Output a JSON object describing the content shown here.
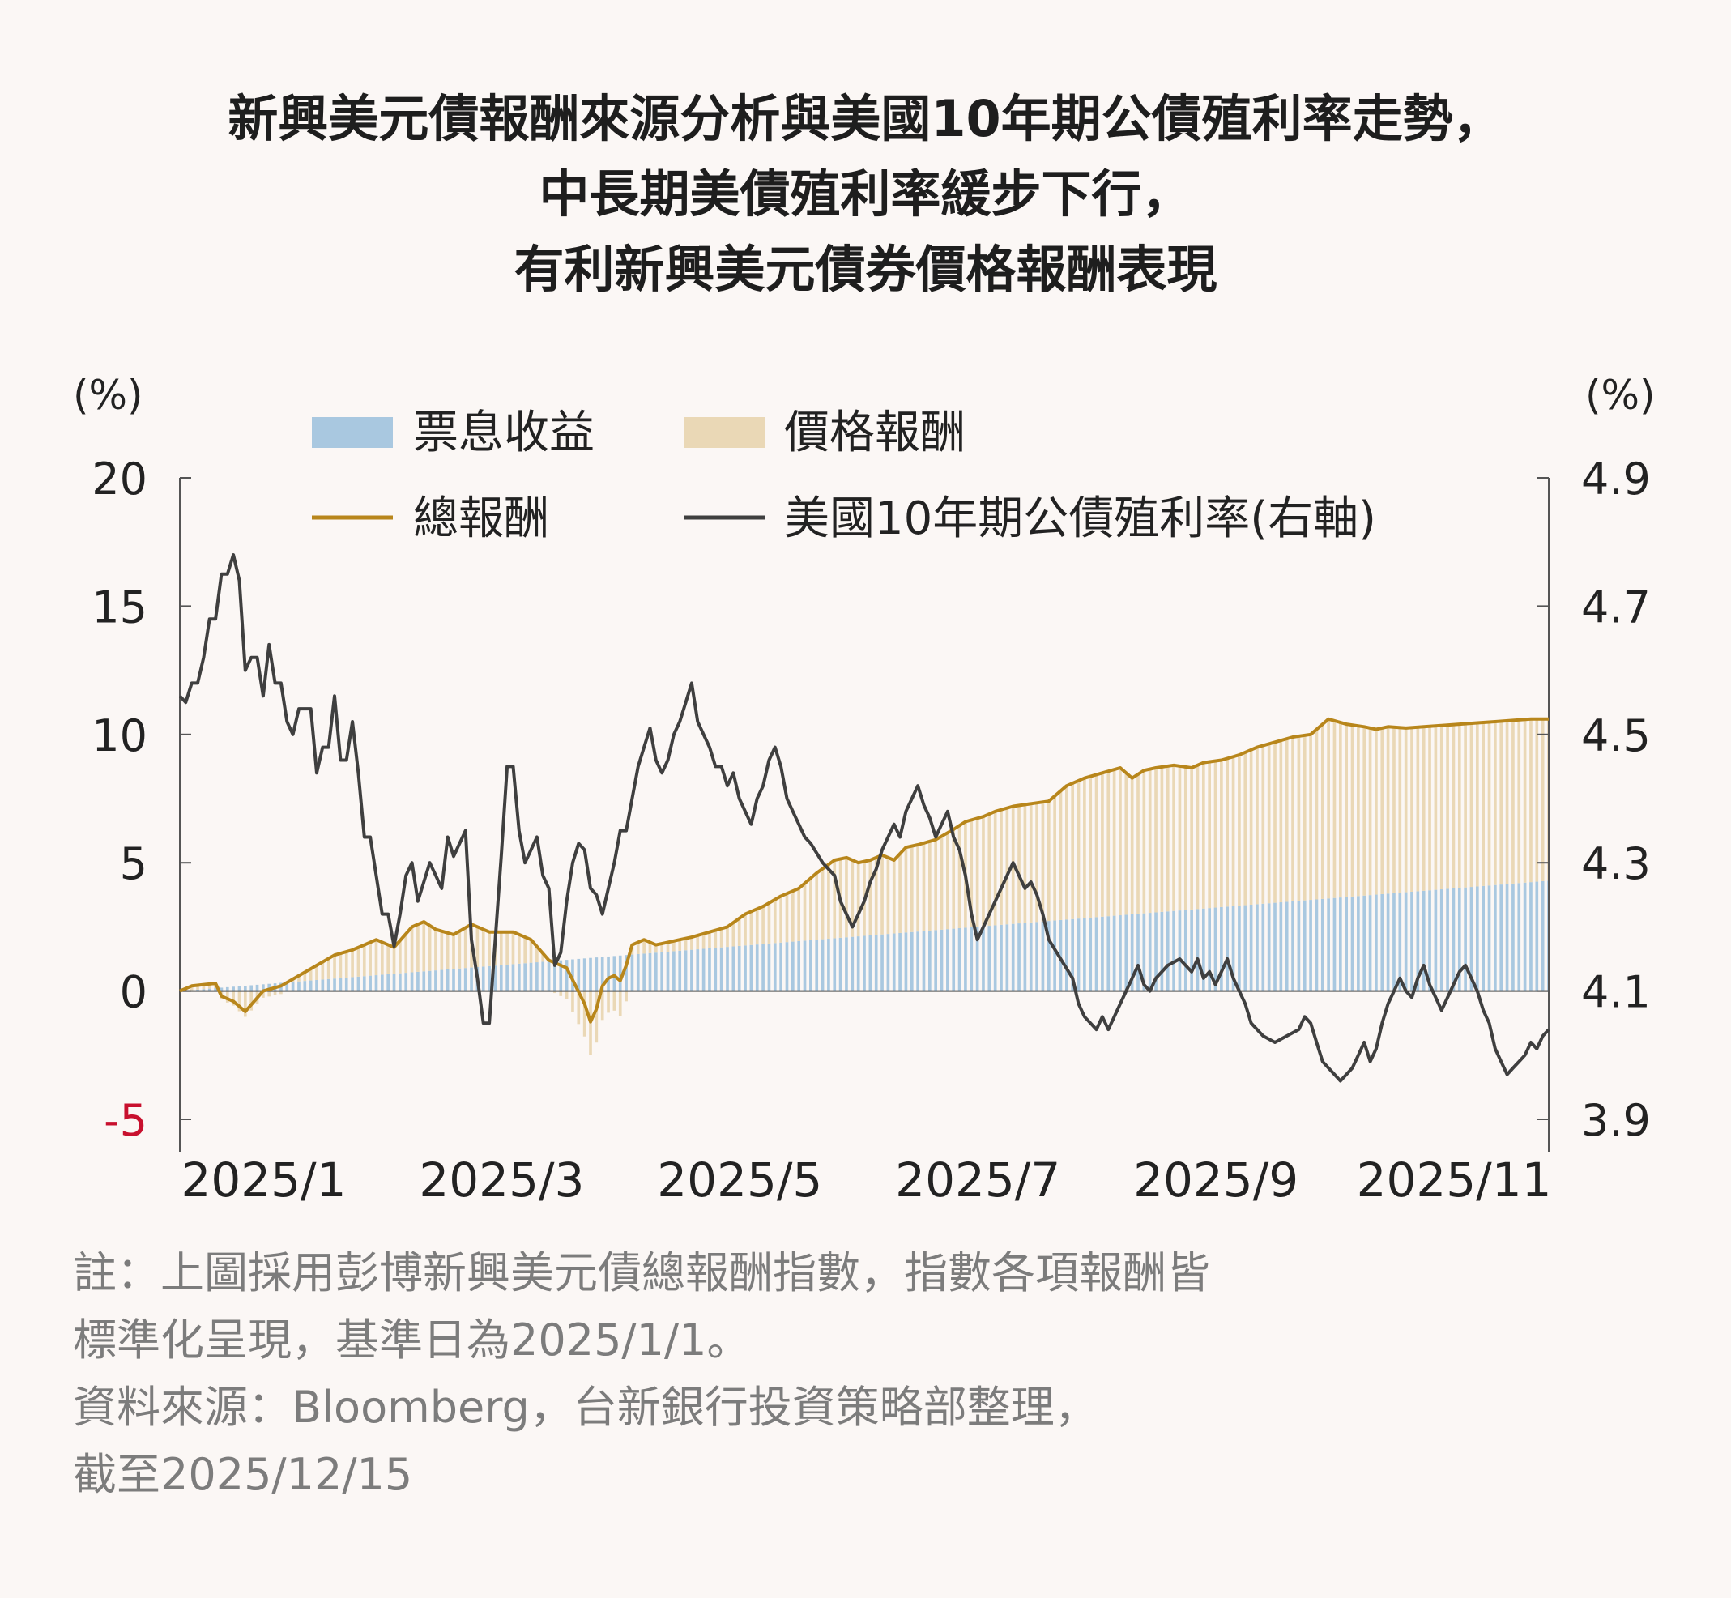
{
  "title": {
    "lines": [
      "新興美元債報酬來源分析與美國10年期公債殖利率走勢，",
      "中長期美債殖利率緩步下行，",
      "有利新興美元債券價格報酬表現"
    ]
  },
  "notes": {
    "lines": [
      "註：上圖採用彭博新興美元債總報酬指數，指數各項報酬皆",
      "標準化呈現，基準日為2025/1/1。",
      "資料來源：Bloomberg，台新銀行投資策略部整理，",
      "截至2025/12/15"
    ]
  },
  "colors": {
    "coupon": "#a9c8e0",
    "price": "#ead8b6",
    "total": "#b8861b",
    "yield": "#3f3f3f",
    "negative_tick": "#c8102e",
    "axis": "#555555"
  },
  "chart_data": {
    "type": "bar+line",
    "left_axis": {
      "unit_label": "(%)",
      "ylim": [
        -5,
        20
      ],
      "ticks": [
        "20",
        "15",
        "10",
        "5",
        "0",
        "-5"
      ]
    },
    "right_axis": {
      "unit_label": "(%)",
      "ylim": [
        3.9,
        4.9
      ],
      "ticks": [
        "4.9",
        "4.7",
        "4.5",
        "4.3",
        "4.1",
        "3.9"
      ]
    },
    "x_axis": {
      "range": [
        0,
        11.5
      ],
      "tick_labels": [
        "2025/1",
        "2025/3",
        "2025/5",
        "2025/7",
        "2025/9",
        "2025/11"
      ],
      "tick_positions": [
        0.5,
        2.5,
        4.5,
        6.5,
        8.5,
        10.5
      ]
    },
    "legend": {
      "coupon": "票息收益",
      "price": "價格報酬",
      "total": "總報酬",
      "yield": "美國10年期公債殖利率(右軸)"
    },
    "coupon_income": {
      "x": [
        0,
        11.5
      ],
      "values": [
        0,
        4.3
      ]
    },
    "total_return": {
      "x": [
        0,
        0.1,
        0.3,
        0.35,
        0.45,
        0.55,
        0.7,
        0.85,
        1,
        1.15,
        1.3,
        1.45,
        1.55,
        1.65,
        1.8,
        1.95,
        2.05,
        2.15,
        2.3,
        2.45,
        2.6,
        2.8,
        2.95,
        3.1,
        3.25,
        3.4,
        3.45,
        3.5,
        3.55,
        3.6,
        3.65,
        3.7,
        3.75,
        3.8,
        3.9,
        4.0,
        4.1,
        4.2,
        4.3,
        4.45,
        4.6,
        4.75,
        4.9,
        5.05,
        5.2,
        5.35,
        5.5,
        5.6,
        5.7,
        5.8,
        5.9,
        6.0,
        6.1,
        6.2,
        6.35,
        6.5,
        6.6,
        6.75,
        6.85,
        7.0,
        7.15,
        7.3,
        7.45,
        7.6,
        7.75,
        7.9,
        8.0,
        8.1,
        8.2,
        8.35,
        8.5,
        8.6,
        8.75,
        8.9,
        9.05,
        9.2,
        9.35,
        9.5,
        9.65,
        9.8,
        9.95,
        10.05,
        10.15,
        10.3,
        10.45,
        10.6,
        10.75,
        10.9,
        11.05,
        11.2,
        11.35,
        11.5
      ],
      "values": [
        0,
        0.2,
        0.3,
        -0.2,
        -0.4,
        -0.8,
        0,
        0.2,
        0.6,
        1.0,
        1.4,
        1.6,
        1.8,
        2.0,
        1.7,
        2.5,
        2.7,
        2.4,
        2.2,
        2.6,
        2.3,
        2.3,
        2.0,
        1.2,
        0.9,
        -0.5,
        -1.2,
        -0.7,
        0.2,
        0.5,
        0.6,
        0.4,
        1.0,
        1.8,
        2.0,
        1.8,
        1.9,
        2.0,
        2.1,
        2.3,
        2.5,
        3.0,
        3.3,
        3.7,
        4.0,
        4.6,
        5.1,
        5.2,
        5.0,
        5.1,
        5.3,
        5.1,
        5.6,
        5.7,
        5.9,
        6.3,
        6.6,
        6.8,
        7.0,
        7.2,
        7.3,
        7.4,
        8.0,
        8.3,
        8.5,
        8.7,
        8.3,
        8.6,
        8.7,
        8.8,
        8.7,
        8.9,
        9.0,
        9.2,
        9.5,
        9.7,
        9.9,
        10.0,
        10.6,
        10.4,
        10.3,
        10.2,
        10.3,
        10.25,
        10.3,
        10.35,
        10.4,
        10.45,
        10.5,
        10.55,
        10.6,
        10.6
      ]
    },
    "us10y_yield": {
      "x": [
        0,
        0.05,
        0.1,
        0.15,
        0.2,
        0.25,
        0.3,
        0.35,
        0.4,
        0.45,
        0.5,
        0.55,
        0.6,
        0.65,
        0.7,
        0.75,
        0.8,
        0.85,
        0.9,
        0.95,
        1.0,
        1.1,
        1.15,
        1.2,
        1.25,
        1.3,
        1.35,
        1.4,
        1.45,
        1.5,
        1.55,
        1.6,
        1.7,
        1.75,
        1.8,
        1.85,
        1.9,
        1.95,
        2.0,
        2.1,
        2.15,
        2.2,
        2.25,
        2.3,
        2.4,
        2.45,
        2.5,
        2.55,
        2.6,
        2.7,
        2.75,
        2.8,
        2.85,
        2.9,
        2.95,
        3.0,
        3.05,
        3.1,
        3.15,
        3.2,
        3.25,
        3.3,
        3.35,
        3.4,
        3.45,
        3.5,
        3.55,
        3.6,
        3.65,
        3.7,
        3.75,
        3.8,
        3.85,
        3.9,
        3.95,
        4.0,
        4.05,
        4.1,
        4.15,
        4.2,
        4.25,
        4.3,
        4.35,
        4.4,
        4.45,
        4.5,
        4.55,
        4.6,
        4.65,
        4.7,
        4.75,
        4.8,
        4.85,
        4.9,
        4.95,
        5.0,
        5.05,
        5.1,
        5.15,
        5.2,
        5.25,
        5.3,
        5.4,
        5.5,
        5.55,
        5.6,
        5.65,
        5.7,
        5.75,
        5.8,
        5.85,
        5.9,
        5.95,
        6.0,
        6.05,
        6.1,
        6.15,
        6.2,
        6.25,
        6.3,
        6.35,
        6.4,
        6.45,
        6.5,
        6.55,
        6.6,
        6.65,
        6.7,
        6.75,
        6.8,
        6.85,
        6.9,
        6.95,
        7.0,
        7.05,
        7.1,
        7.15,
        7.2,
        7.25,
        7.3,
        7.4,
        7.5,
        7.55,
        7.6,
        7.65,
        7.7,
        7.75,
        7.8,
        7.85,
        7.9,
        7.95,
        8.0,
        8.05,
        8.1,
        8.15,
        8.2,
        8.3,
        8.4,
        8.5,
        8.55,
        8.6,
        8.65,
        8.7,
        8.75,
        8.8,
        8.85,
        8.9,
        8.95,
        9.0,
        9.1,
        9.2,
        9.3,
        9.4,
        9.45,
        9.5,
        9.55,
        9.6,
        9.65,
        9.7,
        9.75,
        9.8,
        9.85,
        9.9,
        9.95,
        10.0,
        10.05,
        10.1,
        10.15,
        10.2,
        10.25,
        10.3,
        10.35,
        10.4,
        10.45,
        10.5,
        10.55,
        10.6,
        10.65,
        10.7,
        10.75,
        10.8,
        10.85,
        10.9,
        10.95,
        11.0,
        11.05,
        11.1,
        11.15,
        11.2,
        11.25,
        11.3,
        11.35,
        11.4,
        11.45,
        11.5
      ],
      "values": [
        4.56,
        4.55,
        4.58,
        4.58,
        4.62,
        4.68,
        4.68,
        4.75,
        4.75,
        4.78,
        4.74,
        4.6,
        4.62,
        4.62,
        4.56,
        4.64,
        4.58,
        4.58,
        4.52,
        4.5,
        4.54,
        4.54,
        4.44,
        4.48,
        4.48,
        4.56,
        4.46,
        4.46,
        4.52,
        4.44,
        4.34,
        4.34,
        4.22,
        4.22,
        4.17,
        4.22,
        4.28,
        4.3,
        4.24,
        4.3,
        4.28,
        4.26,
        4.34,
        4.31,
        4.35,
        4.18,
        4.12,
        4.05,
        4.05,
        4.31,
        4.45,
        4.45,
        4.35,
        4.3,
        4.32,
        4.34,
        4.28,
        4.26,
        4.14,
        4.16,
        4.24,
        4.3,
        4.33,
        4.32,
        4.26,
        4.25,
        4.22,
        4.26,
        4.3,
        4.35,
        4.35,
        4.4,
        4.45,
        4.48,
        4.51,
        4.46,
        4.44,
        4.46,
        4.5,
        4.52,
        4.55,
        4.58,
        4.52,
        4.5,
        4.48,
        4.45,
        4.45,
        4.42,
        4.44,
        4.4,
        4.38,
        4.36,
        4.4,
        4.42,
        4.46,
        4.48,
        4.45,
        4.4,
        4.38,
        4.36,
        4.34,
        4.33,
        4.3,
        4.28,
        4.24,
        4.22,
        4.2,
        4.22,
        4.24,
        4.27,
        4.29,
        4.32,
        4.34,
        4.36,
        4.34,
        4.38,
        4.4,
        4.42,
        4.39,
        4.37,
        4.34,
        4.36,
        4.38,
        4.34,
        4.32,
        4.28,
        4.22,
        4.18,
        4.2,
        4.22,
        4.24,
        4.26,
        4.28,
        4.3,
        4.28,
        4.26,
        4.27,
        4.25,
        4.22,
        4.18,
        4.15,
        4.12,
        4.08,
        4.06,
        4.05,
        4.04,
        4.06,
        4.04,
        4.06,
        4.08,
        4.1,
        4.12,
        4.14,
        4.11,
        4.1,
        4.12,
        4.14,
        4.15,
        4.13,
        4.15,
        4.12,
        4.13,
        4.11,
        4.13,
        4.15,
        4.12,
        4.1,
        4.08,
        4.05,
        4.03,
        4.02,
        4.03,
        4.04,
        4.06,
        4.05,
        4.02,
        3.99,
        3.98,
        3.97,
        3.96,
        3.97,
        3.98,
        4.0,
        4.02,
        3.99,
        4.01,
        4.05,
        4.08,
        4.1,
        4.12,
        4.1,
        4.09,
        4.12,
        4.14,
        4.11,
        4.09,
        4.07,
        4.09,
        4.11,
        4.13,
        4.14,
        4.12,
        4.1,
        4.07,
        4.05,
        4.01,
        3.99,
        3.97,
        3.98,
        3.99,
        4.0,
        4.02,
        4.01,
        4.03,
        4.04
      ]
    }
  }
}
